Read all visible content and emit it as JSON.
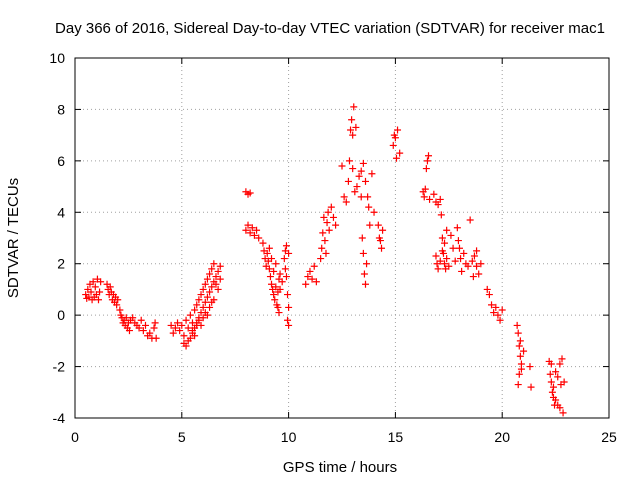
{
  "chart_data": {
    "type": "scatter",
    "title": "Day 366 of 2016, Sidereal Day-to-day VTEC variation (SDTVAR) for receiver mac1",
    "xlabel": "GPS time / hours",
    "ylabel": "SDTVAR / TECUs",
    "xlim": [
      0,
      25
    ],
    "ylim": [
      -4,
      10
    ],
    "xticks": [
      0,
      5,
      10,
      15,
      20,
      25
    ],
    "yticks": [
      -4,
      -2,
      0,
      2,
      4,
      6,
      8,
      10
    ],
    "grid": true,
    "marker": "+",
    "marker_color": "#ff0000",
    "series": [
      {
        "name": "SDTVAR",
        "points": [
          [
            0.5,
            0.8
          ],
          [
            0.55,
            0.65
          ],
          [
            0.6,
            1.0
          ],
          [
            0.65,
            0.7
          ],
          [
            0.7,
            1.2
          ],
          [
            0.75,
            0.9
          ],
          [
            0.8,
            0.6
          ],
          [
            0.85,
            1.3
          ],
          [
            0.9,
            0.7
          ],
          [
            0.95,
            1.1
          ],
          [
            1.0,
            0.8
          ],
          [
            1.05,
            1.4
          ],
          [
            1.1,
            0.6
          ],
          [
            1.15,
            0.9
          ],
          [
            1.2,
            1.3
          ],
          [
            1.5,
            1.2
          ],
          [
            1.55,
            1.0
          ],
          [
            1.6,
            0.8
          ],
          [
            1.65,
            1.1
          ],
          [
            1.7,
            0.9
          ],
          [
            1.75,
            0.6
          ],
          [
            1.8,
            0.8
          ],
          [
            1.85,
            0.5
          ],
          [
            1.9,
            0.7
          ],
          [
            1.95,
            0.4
          ],
          [
            2.0,
            0.6
          ],
          [
            2.1,
            0.2
          ],
          [
            2.15,
            0.0
          ],
          [
            2.2,
            -0.1
          ],
          [
            2.25,
            -0.3
          ],
          [
            2.3,
            -0.2
          ],
          [
            2.35,
            -0.4
          ],
          [
            2.4,
            -0.1
          ],
          [
            2.45,
            -0.5
          ],
          [
            2.5,
            -0.3
          ],
          [
            2.55,
            -0.6
          ],
          [
            2.6,
            -0.2
          ],
          [
            2.7,
            -0.1
          ],
          [
            2.8,
            -0.3
          ],
          [
            2.9,
            -0.4
          ],
          [
            3.0,
            -0.5
          ],
          [
            3.1,
            -0.2
          ],
          [
            3.2,
            -0.6
          ],
          [
            3.3,
            -0.4
          ],
          [
            3.4,
            -0.8
          ],
          [
            3.5,
            -0.7
          ],
          [
            3.6,
            -0.9
          ],
          [
            3.7,
            -0.5
          ],
          [
            3.75,
            -0.3
          ],
          [
            3.8,
            -0.9
          ],
          [
            4.5,
            -0.4
          ],
          [
            4.6,
            -0.7
          ],
          [
            4.7,
            -0.5
          ],
          [
            4.8,
            -0.3
          ],
          [
            4.9,
            -0.6
          ],
          [
            5.0,
            -0.4
          ],
          [
            5.1,
            -0.8
          ],
          [
            5.2,
            -0.2
          ],
          [
            5.3,
            -0.5
          ],
          [
            5.4,
            0.0
          ],
          [
            5.5,
            -0.3
          ],
          [
            5.1,
            -1.1
          ],
          [
            5.2,
            -1.2
          ],
          [
            5.3,
            -1.0
          ],
          [
            5.4,
            -0.9
          ],
          [
            5.5,
            -0.7
          ],
          [
            5.6,
            -0.5
          ],
          [
            5.7,
            -0.3
          ],
          [
            5.8,
            -0.1
          ],
          [
            5.9,
            0.1
          ],
          [
            6.0,
            0.3
          ],
          [
            6.1,
            0.5
          ],
          [
            6.2,
            0.7
          ],
          [
            6.3,
            0.9
          ],
          [
            6.4,
            1.1
          ],
          [
            6.5,
            1.3
          ],
          [
            6.6,
            1.5
          ],
          [
            6.7,
            1.7
          ],
          [
            6.8,
            1.9
          ],
          [
            5.6,
            0.2
          ],
          [
            5.7,
            0.4
          ],
          [
            5.8,
            0.6
          ],
          [
            5.9,
            0.8
          ],
          [
            6.0,
            1.0
          ],
          [
            6.1,
            1.2
          ],
          [
            6.2,
            1.4
          ],
          [
            6.3,
            1.6
          ],
          [
            6.4,
            1.8
          ],
          [
            6.5,
            2.0
          ],
          [
            6.6,
            1.2
          ],
          [
            6.7,
            1.0
          ],
          [
            6.8,
            1.4
          ],
          [
            5.5,
            -0.6
          ],
          [
            5.6,
            -0.8
          ],
          [
            5.7,
            -0.4
          ],
          [
            5.8,
            -0.2
          ],
          [
            5.9,
            -0.4
          ],
          [
            6.0,
            -0.1
          ],
          [
            6.1,
            0.1
          ],
          [
            6.2,
            0.0
          ],
          [
            6.3,
            0.3
          ],
          [
            6.4,
            0.5
          ],
          [
            6.5,
            0.6
          ],
          [
            8.0,
            4.8
          ],
          [
            8.1,
            4.7
          ],
          [
            8.2,
            4.75
          ],
          [
            8.0,
            3.3
          ],
          [
            8.1,
            3.5
          ],
          [
            8.2,
            3.2
          ],
          [
            8.3,
            3.4
          ],
          [
            8.4,
            3.1
          ],
          [
            8.5,
            3.3
          ],
          [
            8.6,
            3.0
          ],
          [
            8.8,
            2.8
          ],
          [
            8.85,
            2.5
          ],
          [
            8.9,
            2.2
          ],
          [
            8.95,
            1.9
          ],
          [
            9.0,
            2.4
          ],
          [
            9.05,
            2.1
          ],
          [
            9.1,
            1.8
          ],
          [
            9.15,
            1.5
          ],
          [
            9.2,
            1.2
          ],
          [
            9.25,
            1.0
          ],
          [
            9.3,
            0.8
          ],
          [
            9.35,
            0.6
          ],
          [
            9.4,
            1.1
          ],
          [
            9.45,
            0.4
          ],
          [
            9.5,
            0.9
          ],
          [
            9.55,
            1.4
          ],
          [
            9.6,
            1.6
          ],
          [
            9.1,
            2.6
          ],
          [
            9.2,
            2.2
          ],
          [
            9.3,
            1.7
          ],
          [
            9.4,
            2.0
          ],
          [
            9.5,
            0.3
          ],
          [
            9.55,
            0.1
          ],
          [
            9.6,
            1.0
          ],
          [
            9.7,
            1.3
          ],
          [
            9.8,
            2.2
          ],
          [
            9.85,
            2.5
          ],
          [
            9.9,
            1.5
          ],
          [
            9.95,
            0.8
          ],
          [
            10.0,
            0.3
          ],
          [
            10.0,
            -0.4
          ],
          [
            9.95,
            -0.2
          ],
          [
            9.85,
            1.8
          ],
          [
            9.9,
            2.7
          ],
          [
            10.0,
            2.4
          ],
          [
            10.8,
            1.2
          ],
          [
            10.9,
            1.5
          ],
          [
            11.0,
            1.7
          ],
          [
            11.1,
            1.4
          ],
          [
            11.2,
            1.9
          ],
          [
            11.3,
            1.3
          ],
          [
            11.5,
            2.2
          ],
          [
            11.55,
            2.6
          ],
          [
            11.6,
            3.2
          ],
          [
            11.65,
            3.8
          ],
          [
            11.7,
            2.9
          ],
          [
            11.75,
            2.4
          ],
          [
            11.8,
            3.6
          ],
          [
            11.85,
            4.0
          ],
          [
            11.9,
            3.3
          ],
          [
            12.0,
            4.2
          ],
          [
            12.1,
            3.8
          ],
          [
            12.2,
            3.5
          ],
          [
            12.5,
            5.8
          ],
          [
            12.6,
            4.6
          ],
          [
            12.7,
            4.4
          ],
          [
            12.8,
            5.2
          ],
          [
            12.85,
            6.0
          ],
          [
            12.9,
            7.2
          ],
          [
            12.95,
            7.6
          ],
          [
            13.0,
            7.0
          ],
          [
            13.05,
            8.1
          ],
          [
            13.0,
            5.7
          ],
          [
            13.1,
            4.8
          ],
          [
            13.15,
            7.3
          ],
          [
            13.2,
            5.0
          ],
          [
            13.3,
            5.4
          ],
          [
            13.4,
            5.6
          ],
          [
            13.45,
            3.0
          ],
          [
            13.5,
            2.4
          ],
          [
            13.55,
            1.6
          ],
          [
            13.6,
            1.2
          ],
          [
            13.65,
            2.0
          ],
          [
            13.5,
            5.9
          ],
          [
            13.6,
            5.2
          ],
          [
            13.4,
            4.6
          ],
          [
            13.7,
            4.6
          ],
          [
            13.75,
            4.2
          ],
          [
            13.8,
            3.5
          ],
          [
            13.9,
            5.5
          ],
          [
            14.0,
            4.0
          ],
          [
            14.2,
            3.5
          ],
          [
            14.25,
            3.0
          ],
          [
            14.3,
            2.9
          ],
          [
            14.35,
            2.6
          ],
          [
            14.4,
            3.3
          ],
          [
            14.9,
            6.6
          ],
          [
            14.95,
            7.0
          ],
          [
            15.0,
            6.9
          ],
          [
            15.05,
            6.1
          ],
          [
            15.1,
            7.2
          ],
          [
            15.2,
            6.3
          ],
          [
            16.3,
            4.8
          ],
          [
            16.35,
            4.6
          ],
          [
            16.4,
            4.9
          ],
          [
            16.45,
            5.7
          ],
          [
            16.5,
            6.0
          ],
          [
            16.55,
            6.2
          ],
          [
            16.6,
            4.5
          ],
          [
            16.8,
            4.7
          ],
          [
            16.9,
            4.4
          ],
          [
            17.0,
            4.3
          ],
          [
            17.1,
            4.5
          ],
          [
            17.15,
            3.9
          ],
          [
            17.2,
            3.0
          ],
          [
            17.25,
            2.4
          ],
          [
            17.3,
            2.0
          ],
          [
            17.35,
            1.8
          ],
          [
            17.4,
            2.2
          ],
          [
            17.5,
            1.9
          ],
          [
            17.6,
            3.1
          ],
          [
            17.7,
            2.6
          ],
          [
            17.8,
            2.1
          ],
          [
            16.9,
            2.3
          ],
          [
            16.95,
            2.0
          ],
          [
            17.0,
            1.8
          ],
          [
            17.1,
            2.1
          ],
          [
            17.2,
            2.5
          ],
          [
            17.3,
            2.8
          ],
          [
            17.4,
            3.3
          ],
          [
            17.9,
            3.4
          ],
          [
            17.95,
            2.9
          ],
          [
            18.0,
            2.6
          ],
          [
            18.05,
            2.2
          ],
          [
            18.1,
            1.7
          ],
          [
            18.2,
            2.4
          ],
          [
            18.3,
            2.0
          ],
          [
            18.4,
            1.9
          ],
          [
            18.5,
            3.7
          ],
          [
            18.6,
            2.1
          ],
          [
            18.7,
            2.3
          ],
          [
            18.8,
            1.9
          ],
          [
            18.9,
            1.6
          ],
          [
            19.0,
            2.0
          ],
          [
            18.8,
            2.5
          ],
          [
            18.65,
            1.5
          ],
          [
            19.3,
            1.0
          ],
          [
            19.4,
            0.8
          ],
          [
            19.5,
            0.4
          ],
          [
            19.6,
            0.1
          ],
          [
            19.7,
            0.3
          ],
          [
            19.8,
            0.0
          ],
          [
            19.9,
            -0.2
          ],
          [
            20.0,
            0.2
          ],
          [
            20.7,
            -0.4
          ],
          [
            20.75,
            -0.7
          ],
          [
            20.8,
            -1.2
          ],
          [
            20.85,
            -1.6
          ],
          [
            20.9,
            -1.9
          ],
          [
            20.8,
            -2.3
          ],
          [
            20.75,
            -2.7
          ],
          [
            20.9,
            -2.1
          ],
          [
            21.0,
            -1.4
          ],
          [
            20.85,
            -1.0
          ],
          [
            21.3,
            -2.0
          ],
          [
            21.35,
            -2.8
          ],
          [
            22.2,
            -1.8
          ],
          [
            22.25,
            -2.3
          ],
          [
            22.3,
            -2.6
          ],
          [
            22.35,
            -3.0
          ],
          [
            22.4,
            -3.2
          ],
          [
            22.45,
            -3.5
          ],
          [
            22.5,
            -3.3
          ],
          [
            22.4,
            -2.8
          ],
          [
            22.3,
            -1.9
          ],
          [
            22.5,
            -2.2
          ],
          [
            22.6,
            -2.4
          ],
          [
            22.7,
            -1.9
          ],
          [
            22.6,
            -3.5
          ],
          [
            22.7,
            -3.6
          ],
          [
            22.75,
            -2.7
          ],
          [
            22.8,
            -1.7
          ],
          [
            22.85,
            -3.8
          ],
          [
            22.9,
            -2.6
          ]
        ]
      }
    ]
  }
}
